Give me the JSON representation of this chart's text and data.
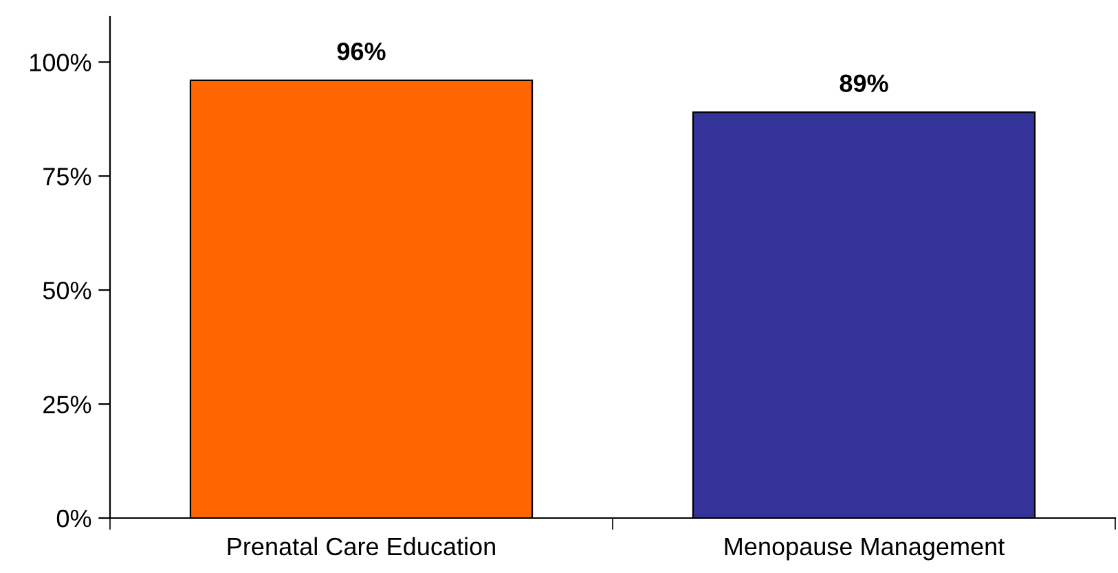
{
  "chart_data": {
    "type": "bar",
    "categories": [
      "Prenatal Care Education",
      "Menopause Management"
    ],
    "values": [
      96,
      89
    ],
    "colors": [
      "#ff6600",
      "#333399"
    ],
    "value_labels": [
      "96%",
      "89%"
    ],
    "ylim": [
      0,
      110
    ],
    "yticks": [
      {
        "value": 0,
        "label": "0%"
      },
      {
        "value": 25,
        "label": "25%"
      },
      {
        "value": 50,
        "label": "50%"
      },
      {
        "value": 75,
        "label": "75%"
      },
      {
        "value": 100,
        "label": "100%"
      }
    ],
    "grid": false,
    "legend": false
  }
}
